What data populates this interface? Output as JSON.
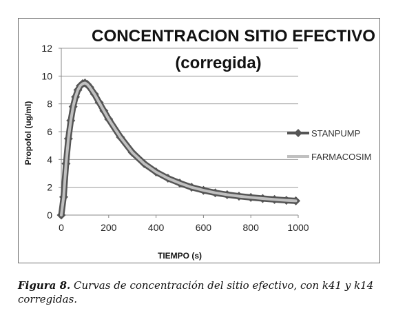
{
  "chart_data": {
    "type": "line",
    "title_line1": "CONCENTRACION SITIO EFECTIVO",
    "title_line2": "(corregida)",
    "xlabel": "TIEMPO (s)",
    "ylabel": "Propofol (ug/ml)",
    "xlim": [
      0,
      1000
    ],
    "ylim": [
      0,
      12
    ],
    "x_ticks": [
      "0",
      "200",
      "400",
      "600",
      "800",
      "1000"
    ],
    "y_ticks": [
      "0",
      "2",
      "4",
      "6",
      "8",
      "10",
      "12"
    ],
    "grid": "horizontal",
    "legend_position": "right",
    "series": [
      {
        "name": "STANPUMP",
        "color": "#555555",
        "marker": "diamond",
        "x": [
          0,
          10,
          20,
          30,
          40,
          50,
          60,
          70,
          80,
          90,
          100,
          110,
          120,
          140,
          160,
          180,
          200,
          250,
          300,
          350,
          400,
          450,
          500,
          550,
          600,
          650,
          700,
          750,
          800,
          850,
          900,
          950,
          990
        ],
        "y": [
          0,
          1.3,
          3.7,
          5.5,
          6.8,
          7.8,
          8.5,
          9.0,
          9.3,
          9.45,
          9.5,
          9.4,
          9.2,
          8.7,
          8.1,
          7.5,
          6.9,
          5.6,
          4.5,
          3.7,
          3.1,
          2.65,
          2.3,
          2.0,
          1.78,
          1.6,
          1.47,
          1.36,
          1.27,
          1.19,
          1.12,
          1.06,
          1.02
        ]
      },
      {
        "name": "FARMACOSIM",
        "color": "#c0c0c0",
        "marker": "none",
        "x": [
          0,
          10,
          20,
          30,
          40,
          50,
          60,
          70,
          80,
          90,
          100,
          110,
          120,
          140,
          160,
          180,
          200,
          250,
          300,
          350,
          400,
          450,
          500,
          550,
          600,
          650,
          700,
          750,
          800,
          850,
          900,
          950,
          990
        ],
        "y": [
          0,
          1.3,
          3.7,
          5.5,
          6.8,
          7.8,
          8.5,
          9.0,
          9.3,
          9.45,
          9.5,
          9.4,
          9.2,
          8.7,
          8.1,
          7.5,
          6.9,
          5.6,
          4.5,
          3.7,
          3.1,
          2.65,
          2.3,
          2.0,
          1.78,
          1.6,
          1.47,
          1.36,
          1.27,
          1.19,
          1.12,
          1.06,
          1.02
        ]
      }
    ]
  },
  "caption": {
    "label": "Figura 8.",
    "text": " Curvas de concentración del sitio efectivo, con k41 y k14 corregidas."
  }
}
